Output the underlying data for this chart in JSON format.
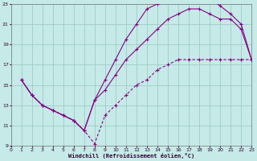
{
  "background_color": "#c5eae7",
  "grid_color": "#a0ccc8",
  "line_color": "#880088",
  "xlabel": "Windchill (Refroidissement éolien,°C)",
  "xmin": 0,
  "xmax": 23,
  "ymin": 9,
  "ymax": 23,
  "yticks": [
    9,
    11,
    13,
    15,
    17,
    19,
    21,
    23
  ],
  "line1_x": [
    1,
    2,
    3,
    4,
    5,
    6,
    7,
    8,
    9,
    10,
    11,
    12,
    13,
    14,
    15,
    16,
    17,
    18,
    19,
    20,
    21,
    22,
    23
  ],
  "line1_y": [
    15.5,
    14.0,
    13.0,
    12.5,
    12.0,
    11.5,
    10.5,
    13.5,
    15.5,
    17.5,
    19.5,
    21.0,
    22.5,
    23.0,
    23.3,
    23.5,
    23.5,
    23.2,
    23.5,
    22.8,
    22.0,
    21.0,
    17.5
  ],
  "line2_x": [
    1,
    2,
    3,
    4,
    5,
    6,
    7,
    8,
    9,
    10,
    11,
    12,
    13,
    14,
    15,
    16,
    17,
    18,
    19,
    20,
    21,
    22,
    23
  ],
  "line2_y": [
    15.5,
    14.0,
    13.0,
    12.5,
    12.0,
    11.5,
    10.5,
    13.5,
    14.5,
    16.0,
    17.5,
    18.5,
    19.5,
    20.5,
    21.5,
    22.0,
    22.5,
    22.5,
    22.0,
    21.5,
    21.5,
    20.5,
    17.5
  ],
  "line3_x": [
    1,
    2,
    3,
    4,
    5,
    6,
    7,
    8,
    9,
    10,
    11,
    12,
    13,
    14,
    15,
    16,
    17,
    18,
    19,
    20,
    21,
    22,
    23
  ],
  "line3_y": [
    15.5,
    14.0,
    13.0,
    12.5,
    12.0,
    11.5,
    10.5,
    9.2,
    12.0,
    13.0,
    14.0,
    15.0,
    15.5,
    16.5,
    17.0,
    17.5,
    17.5,
    17.5,
    17.5,
    17.5,
    17.5,
    17.5,
    17.5
  ]
}
